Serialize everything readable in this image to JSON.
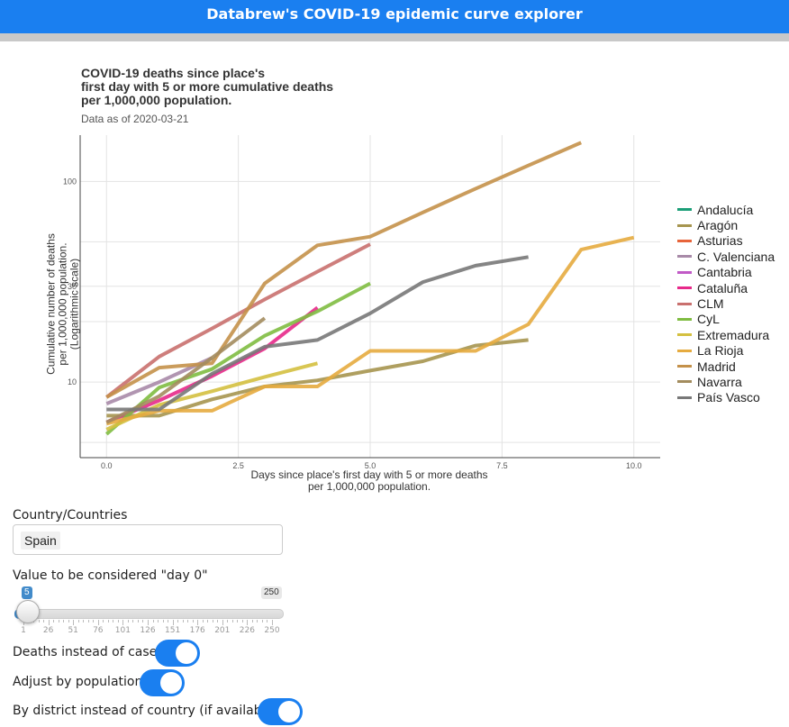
{
  "app": {
    "title": "Databrew's COVID-19 epidemic curve explorer"
  },
  "chart_data": {
    "type": "line",
    "title": "COVID-19 deaths since place's\nfirst day with 5 or more cumulative deaths\nper 1,000,000 population.",
    "subtitle": "Data as of 2020-03-21",
    "xlabel": "Days since place's first day with 5 or more deaths\nper 1,000,000 population.",
    "ylabel": "Cumulative number of deaths\nper 1,000,000 population.\n(Logarithmic scale)",
    "y_scale": "log",
    "xlim": [
      -0.5,
      10.5
    ],
    "ylim": [
      4.2,
      170
    ],
    "x_ticks": [
      0,
      2.5,
      5,
      7.5,
      10
    ],
    "x_tick_labels": [
      "0.0",
      "2.5",
      "5.0",
      "7.5",
      "10.0"
    ],
    "y_ticks": [
      10,
      30,
      100
    ],
    "y_tick_labels": [
      "10",
      "30",
      "100"
    ],
    "grid": true,
    "legend_position": "right",
    "series": [
      {
        "name": "Andalucía",
        "color": "#1b9e77",
        "x": [],
        "y": []
      },
      {
        "name": "Aragón",
        "color": "#a6954f",
        "x": [
          0,
          1,
          2,
          3,
          4,
          5,
          6,
          7,
          8
        ],
        "y": [
          6.8,
          6.8,
          8.2,
          9.5,
          10.2,
          11.4,
          12.7,
          15.2,
          16.2
        ]
      },
      {
        "name": "Asturias",
        "color": "#e7643a",
        "x": [],
        "y": []
      },
      {
        "name": "C. Valenciana",
        "color": "#a88aa8",
        "x": [
          0,
          1,
          2
        ],
        "y": [
          7.8,
          10.0,
          13.2
        ]
      },
      {
        "name": "Cantabria",
        "color": "#c15ac6",
        "x": [],
        "y": []
      },
      {
        "name": "Cataluña",
        "color": "#e7298a",
        "x": [
          0,
          1,
          2,
          3,
          4
        ],
        "y": [
          6.3,
          8.1,
          10.7,
          14.7,
          23.5
        ]
      },
      {
        "name": "CLM",
        "color": "#c9706e",
        "x": [
          0,
          1,
          2,
          3,
          4,
          5
        ],
        "y": [
          8.4,
          13.4,
          18.5,
          25.8,
          35.5,
          48.6
        ]
      },
      {
        "name": "CyL",
        "color": "#7fbc41",
        "x": [
          0,
          1,
          2,
          3,
          4,
          5
        ],
        "y": [
          5.5,
          9.4,
          11.6,
          17.0,
          22.5,
          31.0
        ]
      },
      {
        "name": "Extremadura",
        "color": "#d4c040",
        "x": [
          0,
          1,
          2,
          3,
          4
        ],
        "y": [
          5.8,
          7.7,
          9.0,
          10.6,
          12.4
        ]
      },
      {
        "name": "La Rioja",
        "color": "#e6ab3f",
        "x": [
          0,
          1,
          2,
          3,
          4,
          5,
          6,
          7,
          8,
          9,
          10
        ],
        "y": [
          6.2,
          7.2,
          7.2,
          9.5,
          9.5,
          14.3,
          14.3,
          14.3,
          19.4,
          45.7,
          52.5
        ]
      },
      {
        "name": "Madrid",
        "color": "#c4914a",
        "x": [
          0,
          1,
          2,
          3,
          4,
          5,
          6,
          7,
          8,
          9
        ],
        "y": [
          8.4,
          11.8,
          12.4,
          31.0,
          48.0,
          53.0,
          70.0,
          92.0,
          120.0,
          156.0
        ]
      },
      {
        "name": "Navarra",
        "color": "#a38c5e",
        "x": [
          0,
          1,
          2,
          3
        ],
        "y": [
          6.3,
          8.5,
          13.2,
          20.8
        ]
      },
      {
        "name": "País Vasco",
        "color": "#787878",
        "x": [
          0,
          1,
          2,
          3,
          4,
          5,
          6,
          7,
          8
        ],
        "y": [
          7.3,
          7.3,
          11.0,
          15.0,
          16.2,
          22.0,
          31.5,
          38.0,
          42.0
        ]
      }
    ]
  },
  "controls": {
    "country_label": "Country/Countries",
    "country_value": "Spain",
    "day0_label": "Value to be considered \"day 0\"",
    "slider": {
      "value": 5,
      "min": 1,
      "max": 250,
      "value_label": "5",
      "max_label": "250",
      "tick_labels": [
        "1",
        "26",
        "51",
        "76",
        "101",
        "126",
        "151",
        "176",
        "201",
        "226",
        "250"
      ]
    },
    "toggles": [
      {
        "label": "Deaths instead of cases?",
        "on": true
      },
      {
        "label": "Adjust by population?",
        "on": true
      },
      {
        "label": "By district instead of country (if available)?",
        "on": true
      }
    ]
  }
}
